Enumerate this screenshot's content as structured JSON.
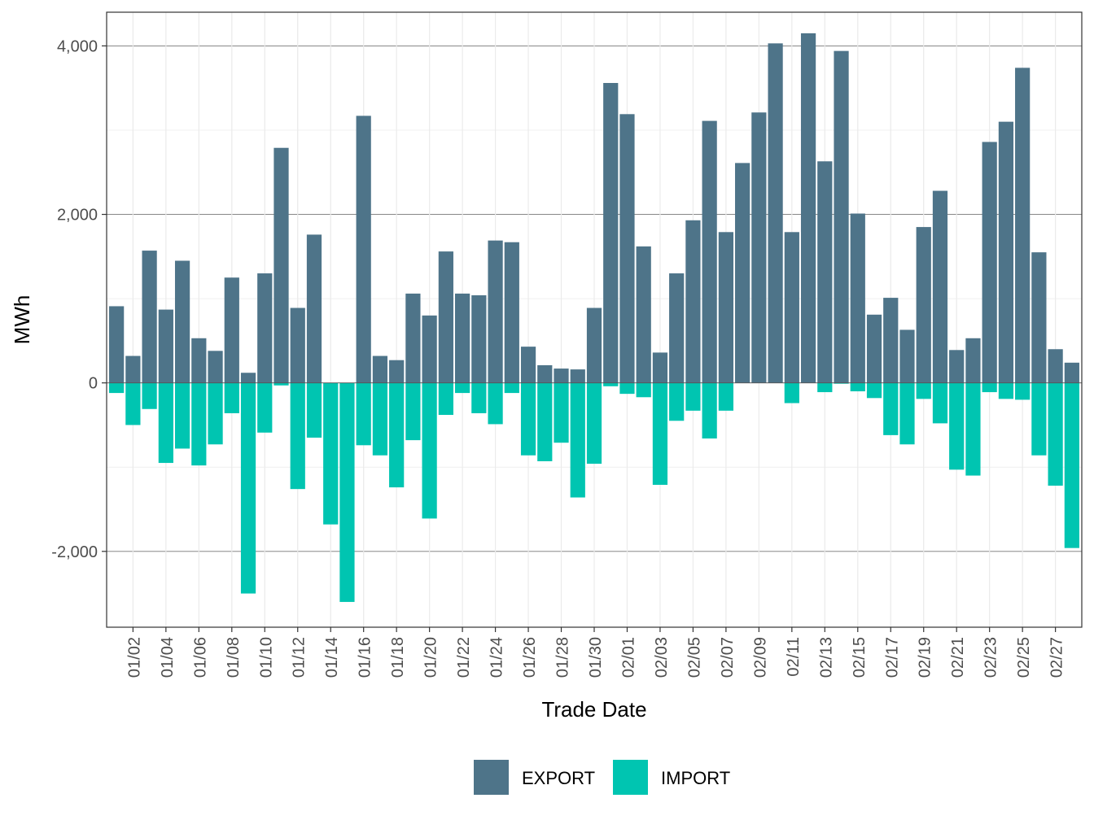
{
  "chart_data": {
    "type": "bar",
    "xlabel": "Trade Date",
    "ylabel": "MWh",
    "ylim": [
      -2900,
      4400
    ],
    "y_ticks": [
      -2000,
      0,
      2000,
      4000
    ],
    "y_tick_labels": [
      "-2,000",
      "0",
      "2,000",
      "4,000"
    ],
    "x_tick_labels": [
      "01/02",
      "01/04",
      "01/06",
      "01/08",
      "01/10",
      "01/12",
      "01/14",
      "01/16",
      "01/18",
      "01/20",
      "01/22",
      "01/24",
      "01/26",
      "01/28",
      "01/30",
      "02/01",
      "02/03",
      "02/05",
      "02/07",
      "02/09",
      "02/11",
      "02/13",
      "02/15",
      "02/17",
      "02/19",
      "02/21",
      "02/23",
      "02/25",
      "02/27"
    ],
    "grid": true,
    "legend_position": "bottom",
    "categories": [
      "01/01",
      "01/02",
      "01/03",
      "01/04",
      "01/05",
      "01/06",
      "01/07",
      "01/08",
      "01/09",
      "01/10",
      "01/11",
      "01/12",
      "01/13",
      "01/14",
      "01/15",
      "01/16",
      "01/17",
      "01/18",
      "01/19",
      "01/20",
      "01/21",
      "01/22",
      "01/23",
      "01/24",
      "01/25",
      "01/26",
      "01/27",
      "01/28",
      "01/29",
      "01/30",
      "01/31",
      "02/01",
      "02/02",
      "02/03",
      "02/04",
      "02/05",
      "02/06",
      "02/07",
      "02/08",
      "02/09",
      "02/10",
      "02/11",
      "02/12",
      "02/13",
      "02/14",
      "02/15",
      "02/16",
      "02/17",
      "02/18",
      "02/19",
      "02/20",
      "02/21",
      "02/22",
      "02/23",
      "02/24",
      "02/25",
      "02/26",
      "02/27",
      "02/28"
    ],
    "series": [
      {
        "name": "EXPORT",
        "color": "#4e7489",
        "values": [
          910,
          320,
          1570,
          870,
          1450,
          530,
          380,
          1250,
          120,
          1300,
          2790,
          890,
          1760,
          0,
          0,
          3170,
          320,
          270,
          1060,
          800,
          1560,
          1060,
          1040,
          1690,
          1670,
          430,
          210,
          170,
          160,
          890,
          3560,
          3190,
          1620,
          360,
          1300,
          1930,
          3110,
          1790,
          2610,
          3210,
          4030,
          1790,
          4150,
          2630,
          3940,
          2010,
          810,
          1010,
          630,
          1850,
          2280,
          390,
          530,
          2860,
          3100,
          3740,
          1550,
          400,
          240
        ]
      },
      {
        "name": "IMPORT",
        "color": "#00c5b1",
        "values": [
          -120,
          -500,
          -310,
          -950,
          -780,
          -980,
          -730,
          -360,
          -2500,
          -590,
          -30,
          -1260,
          -650,
          -1680,
          -2600,
          -740,
          -860,
          -1240,
          -680,
          -1610,
          -380,
          -120,
          -360,
          -490,
          -120,
          -860,
          -930,
          -710,
          -1360,
          -960,
          -40,
          -130,
          -170,
          -1210,
          -450,
          -330,
          -660,
          -330,
          0,
          0,
          0,
          -240,
          0,
          -110,
          -10,
          -100,
          -180,
          -620,
          -730,
          -190,
          -480,
          -1030,
          -1100,
          -110,
          -190,
          -200,
          -860,
          -1220,
          -1960
        ]
      }
    ]
  }
}
